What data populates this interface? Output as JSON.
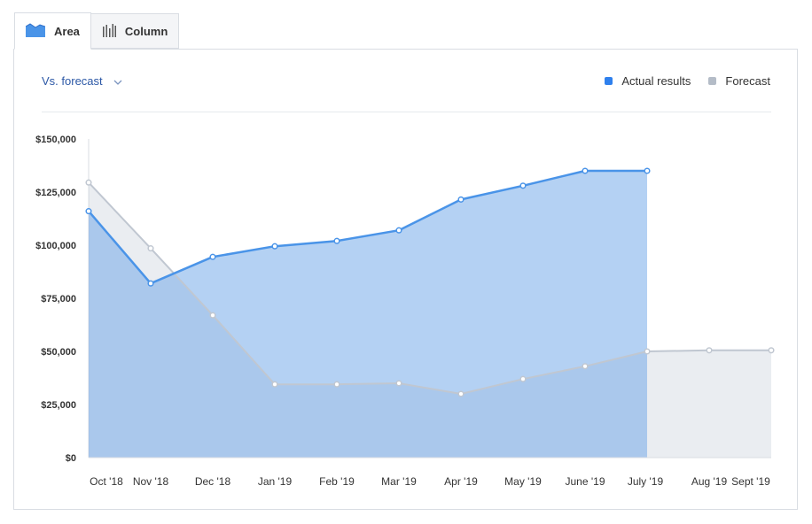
{
  "tabs": [
    {
      "label": "Area",
      "icon": "area-chart-icon",
      "active": true
    },
    {
      "label": "Column",
      "icon": "column-chart-icon",
      "active": false
    }
  ],
  "dropdown": {
    "label": "Vs. forecast",
    "icon": "chevron-down-icon"
  },
  "legend": [
    {
      "label": "Actual results",
      "color": "#2f80ed"
    },
    {
      "label": "Forecast",
      "color": "#b4bcc7"
    }
  ],
  "chart_data": {
    "type": "area",
    "categories": [
      "Oct '18",
      "Nov '18",
      "Dec '18",
      "Jan '19",
      "Feb '19",
      "Mar '19",
      "Apr '19",
      "May '19",
      "June '19",
      "July '19",
      "Aug '19",
      "Sept '19"
    ],
    "series": [
      {
        "name": "Actual results",
        "color": "#4a94e8",
        "values": [
          116000,
          82000,
          94500,
          99500,
          102000,
          107000,
          121500,
          128000,
          135000,
          135000,
          null,
          null
        ]
      },
      {
        "name": "Forecast",
        "color": "#c0c7d1",
        "values": [
          129500,
          98500,
          67000,
          34500,
          34500,
          35000,
          30000,
          37000,
          43000,
          50000,
          50500,
          50500
        ]
      }
    ],
    "ylim": [
      0,
      150000
    ],
    "yticks": [
      0,
      25000,
      50000,
      75000,
      100000,
      125000,
      150000
    ],
    "ytick_labels": [
      "$0",
      "$25,000",
      "$50,000",
      "$75,000",
      "$100,000",
      "$125,000",
      "$150,000"
    ],
    "legend_position": "top-right",
    "grid": false
  }
}
